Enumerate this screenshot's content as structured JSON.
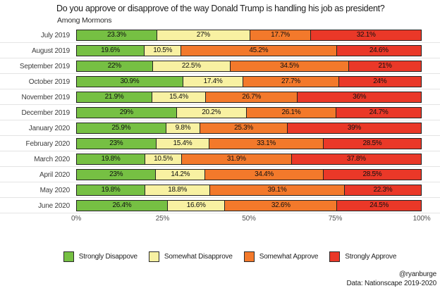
{
  "header": {
    "title": "Do you approve or disapprove of the way Donald Trump is handling his job as president?",
    "subtitle": "Among Mormons"
  },
  "credits": {
    "handle": "@ryanburge",
    "source": "Data: Nationscape 2019-2020"
  },
  "axis": {
    "ticks": [
      "0%",
      "25%",
      "50%",
      "75%",
      "100%"
    ]
  },
  "chart_data": {
    "type": "bar",
    "stacked": true,
    "orientation": "horizontal",
    "title": "Do you approve or disapprove of the way Donald Trump is handling his job as president?",
    "subtitle": "Among Mormons",
    "xlim": [
      0,
      100
    ],
    "x_tick_labels": [
      "0%",
      "25%",
      "50%",
      "75%",
      "100%"
    ],
    "legend_position": "bottom",
    "grid": "faint horizontal lines between category rows",
    "bar_border_color": "#222222",
    "categories": [
      "July 2019",
      "August 2019",
      "September 2019",
      "October 2019",
      "November 2019",
      "December 2019",
      "January 2020",
      "February 2020",
      "March 2020",
      "April 2020",
      "May 2020",
      "June 2020"
    ],
    "series": [
      {
        "name": "Strongly Disappove",
        "color": "#76C043",
        "values": [
          23.3,
          19.6,
          22,
          30.9,
          21.9,
          29,
          25.9,
          23,
          19.8,
          23,
          19.8,
          26.4
        ]
      },
      {
        "name": "Somewhat Disapprove",
        "color": "#F8F1A2",
        "values": [
          27,
          10.5,
          22.5,
          17.4,
          15.4,
          20.2,
          9.8,
          15.4,
          10.5,
          14.2,
          18.8,
          16.6
        ]
      },
      {
        "name": "Somewhat Approve",
        "color": "#F3792B",
        "values": [
          17.7,
          45.2,
          34.5,
          27.7,
          26.7,
          26.1,
          25.3,
          33.1,
          31.9,
          34.4,
          39.1,
          32.6
        ]
      },
      {
        "name": "Strongly Approve",
        "color": "#EA3828",
        "values": [
          32.1,
          24.6,
          21,
          24,
          36,
          24.7,
          39,
          28.5,
          37.8,
          28.5,
          22.3,
          24.5
        ]
      }
    ]
  }
}
